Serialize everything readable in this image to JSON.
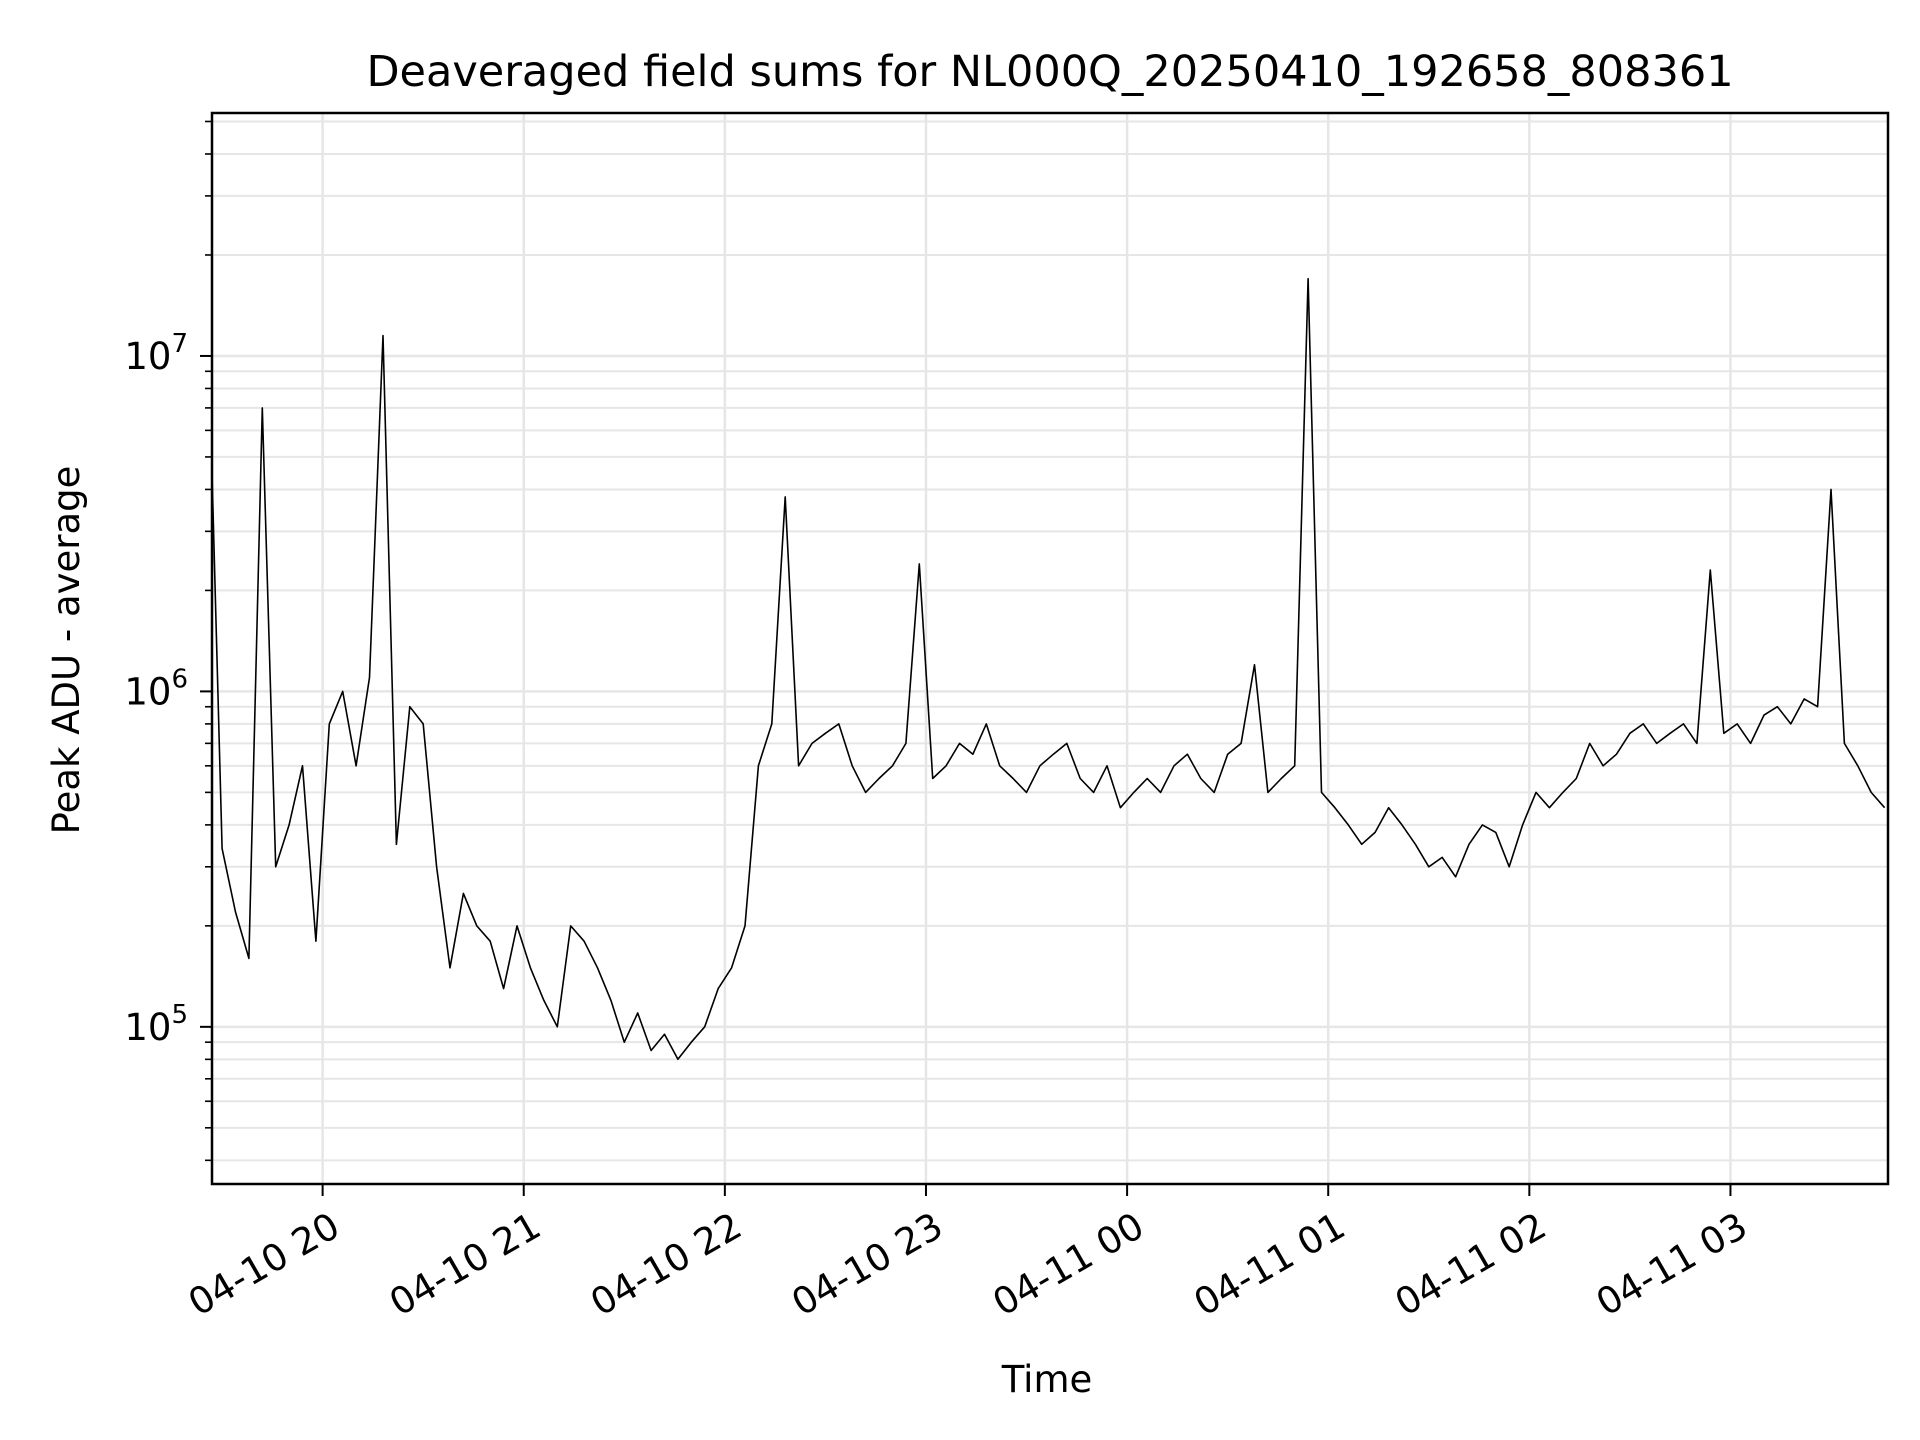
{
  "chart_data": {
    "type": "line",
    "title": "Deaveraged field sums for NL000Q_20250410_192658_808361",
    "xlabel": "Time",
    "ylabel": "Peak ADU - average",
    "x_scale": "time",
    "y_scale": "log",
    "xlim": [
      "2025-04-10 19:27",
      "2025-04-11 03:47"
    ],
    "ylim": [
      34000,
      53000000
    ],
    "grid": true,
    "legend": "none",
    "line_color": "#000000",
    "grid_color": "#e6e6e6",
    "x_ticks": [
      {
        "label": "04-10 20",
        "value": "2025-04-10 20:00"
      },
      {
        "label": "04-10 21",
        "value": "2025-04-10 21:00"
      },
      {
        "label": "04-10 22",
        "value": "2025-04-10 22:00"
      },
      {
        "label": "04-10 23",
        "value": "2025-04-10 23:00"
      },
      {
        "label": "04-11 00",
        "value": "2025-04-11 00:00"
      },
      {
        "label": "04-11 01",
        "value": "2025-04-11 01:00"
      },
      {
        "label": "04-11 02",
        "value": "2025-04-11 02:00"
      },
      {
        "label": "04-11 03",
        "value": "2025-04-11 03:00"
      }
    ],
    "y_ticks": [
      {
        "base": "10",
        "exp": "5",
        "value": 100000
      },
      {
        "base": "10",
        "exp": "6",
        "value": 1000000
      },
      {
        "base": "10",
        "exp": "7",
        "value": 10000000
      }
    ],
    "series": [
      {
        "x": [
          "2025-04-10 19:27",
          "2025-04-10 19:30",
          "2025-04-10 19:34",
          "2025-04-10 19:38",
          "2025-04-10 19:42",
          "2025-04-10 19:46",
          "2025-04-10 19:50",
          "2025-04-10 19:54",
          "2025-04-10 19:58",
          "2025-04-10 20:02",
          "2025-04-10 20:06",
          "2025-04-10 20:10",
          "2025-04-10 20:14",
          "2025-04-10 20:18",
          "2025-04-10 20:22",
          "2025-04-10 20:26",
          "2025-04-10 20:30",
          "2025-04-10 20:34",
          "2025-04-10 20:38",
          "2025-04-10 20:42",
          "2025-04-10 20:46",
          "2025-04-10 20:50",
          "2025-04-10 20:54",
          "2025-04-10 20:58",
          "2025-04-10 21:02",
          "2025-04-10 21:06",
          "2025-04-10 21:10",
          "2025-04-10 21:14",
          "2025-04-10 21:18",
          "2025-04-10 21:22",
          "2025-04-10 21:26",
          "2025-04-10 21:30",
          "2025-04-10 21:34",
          "2025-04-10 21:38",
          "2025-04-10 21:42",
          "2025-04-10 21:46",
          "2025-04-10 21:50",
          "2025-04-10 21:54",
          "2025-04-10 21:58",
          "2025-04-10 22:02",
          "2025-04-10 22:06",
          "2025-04-10 22:10",
          "2025-04-10 22:14",
          "2025-04-10 22:18",
          "2025-04-10 22:22",
          "2025-04-10 22:26",
          "2025-04-10 22:30",
          "2025-04-10 22:34",
          "2025-04-10 22:38",
          "2025-04-10 22:42",
          "2025-04-10 22:46",
          "2025-04-10 22:50",
          "2025-04-10 22:54",
          "2025-04-10 22:58",
          "2025-04-10 23:02",
          "2025-04-10 23:06",
          "2025-04-10 23:10",
          "2025-04-10 23:14",
          "2025-04-10 23:18",
          "2025-04-10 23:22",
          "2025-04-10 23:26",
          "2025-04-10 23:30",
          "2025-04-10 23:34",
          "2025-04-10 23:38",
          "2025-04-10 23:42",
          "2025-04-10 23:46",
          "2025-04-10 23:50",
          "2025-04-10 23:54",
          "2025-04-10 23:58",
          "2025-04-11 00:02",
          "2025-04-11 00:06",
          "2025-04-11 00:10",
          "2025-04-11 00:14",
          "2025-04-11 00:18",
          "2025-04-11 00:22",
          "2025-04-11 00:26",
          "2025-04-11 00:30",
          "2025-04-11 00:34",
          "2025-04-11 00:38",
          "2025-04-11 00:42",
          "2025-04-11 00:46",
          "2025-04-11 00:50",
          "2025-04-11 00:54",
          "2025-04-11 00:58",
          "2025-04-11 01:02",
          "2025-04-11 01:06",
          "2025-04-11 01:10",
          "2025-04-11 01:14",
          "2025-04-11 01:18",
          "2025-04-11 01:22",
          "2025-04-11 01:26",
          "2025-04-11 01:30",
          "2025-04-11 01:34",
          "2025-04-11 01:38",
          "2025-04-11 01:42",
          "2025-04-11 01:46",
          "2025-04-11 01:50",
          "2025-04-11 01:54",
          "2025-04-11 01:58",
          "2025-04-11 02:02",
          "2025-04-11 02:06",
          "2025-04-11 02:10",
          "2025-04-11 02:14",
          "2025-04-11 02:18",
          "2025-04-11 02:22",
          "2025-04-11 02:26",
          "2025-04-11 02:30",
          "2025-04-11 02:34",
          "2025-04-11 02:38",
          "2025-04-11 02:42",
          "2025-04-11 02:46",
          "2025-04-11 02:50",
          "2025-04-11 02:54",
          "2025-04-11 02:58",
          "2025-04-11 03:02",
          "2025-04-11 03:06",
          "2025-04-11 03:10",
          "2025-04-11 03:14",
          "2025-04-11 03:18",
          "2025-04-11 03:22",
          "2025-04-11 03:26",
          "2025-04-11 03:30",
          "2025-04-11 03:34",
          "2025-04-11 03:38",
          "2025-04-11 03:42",
          "2025-04-11 03:46"
        ],
        "y": [
          4500000,
          340000,
          220000,
          160000,
          7000000,
          300000,
          400000,
          600000,
          180000,
          800000,
          1000000,
          600000,
          1100000,
          11500000,
          350000,
          900000,
          800000,
          300000,
          150000,
          250000,
          200000,
          180000,
          130000,
          200000,
          150000,
          120000,
          100000,
          200000,
          180000,
          150000,
          120000,
          90000,
          110000,
          85000,
          95000,
          80000,
          90000,
          100000,
          130000,
          150000,
          200000,
          600000,
          800000,
          3800000,
          600000,
          700000,
          750000,
          800000,
          600000,
          500000,
          550000,
          600000,
          700000,
          2400000,
          550000,
          600000,
          700000,
          650000,
          800000,
          600000,
          550000,
          500000,
          600000,
          650000,
          700000,
          550000,
          500000,
          600000,
          450000,
          500000,
          550000,
          500000,
          600000,
          650000,
          550000,
          500000,
          650000,
          700000,
          1200000,
          500000,
          550000,
          600000,
          17000000,
          500000,
          450000,
          400000,
          350000,
          380000,
          450000,
          400000,
          350000,
          300000,
          320000,
          280000,
          350000,
          400000,
          380000,
          300000,
          400000,
          500000,
          450000,
          500000,
          550000,
          700000,
          600000,
          650000,
          750000,
          800000,
          700000,
          750000,
          800000,
          700000,
          2300000,
          750000,
          800000,
          700000,
          850000,
          900000,
          800000,
          950000,
          900000,
          4000000,
          700000,
          600000,
          500000,
          450000
        ],
        "y_unit_note": ""
      }
    ]
  }
}
